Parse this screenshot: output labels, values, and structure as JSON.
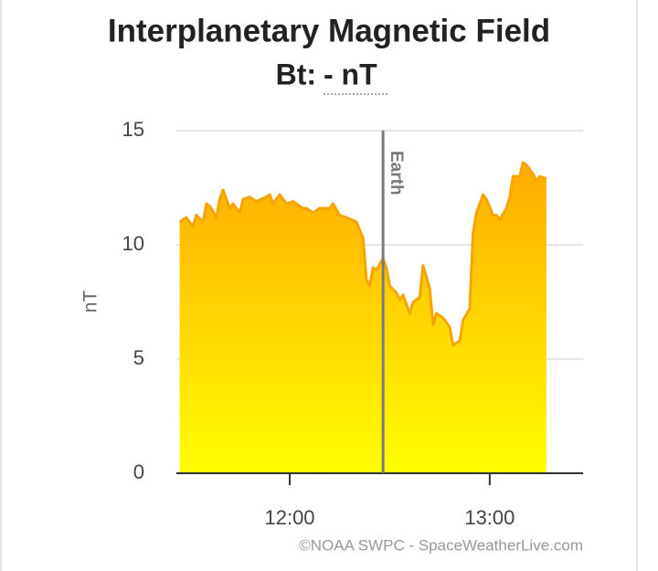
{
  "chart_data": {
    "type": "area",
    "title": "Interplanetary Magnetic Field",
    "subtitle_label": "Bt:",
    "subtitle_value": "- nT",
    "y_label": "nT",
    "credit": "©NOAA SWPC - SpaceWeatherLive.com",
    "color": "#f7a400",
    "fill_colors": [
      "#ffff00",
      "#ffab00"
    ],
    "grid": true,
    "xlim": [
      686,
      808
    ],
    "xticks": [
      {
        "value": 720,
        "label": "12:00"
      },
      {
        "value": 780,
        "label": "13:00"
      }
    ],
    "ylim": [
      0,
      15
    ],
    "yticks": [
      0,
      5,
      10,
      15
    ],
    "marker": {
      "x": 748,
      "label": "Earth",
      "color": "#7a7a7a"
    },
    "x": [
      687,
      689,
      691,
      692,
      694,
      695,
      696,
      698,
      699,
      700,
      702,
      703,
      705,
      706,
      708,
      710,
      713,
      714,
      715,
      717,
      719,
      721,
      724,
      725,
      727,
      729,
      732,
      733,
      735,
      737,
      740,
      742,
      743,
      744,
      745,
      746,
      748,
      749,
      750,
      752,
      753,
      754,
      756,
      757,
      759,
      760,
      762,
      763,
      764,
      766,
      768,
      769,
      771,
      772,
      774,
      775,
      776,
      778,
      779,
      781,
      782,
      783,
      785,
      786,
      787,
      789,
      790,
      791,
      793,
      794,
      795,
      797
    ],
    "values": [
      11.0,
      11.2,
      10.8,
      11.3,
      11.0,
      11.8,
      11.7,
      11.2,
      12.0,
      12.4,
      11.6,
      11.8,
      11.4,
      12.0,
      12.1,
      11.9,
      12.1,
      12.2,
      11.8,
      12.2,
      11.8,
      11.9,
      11.6,
      11.6,
      11.4,
      11.6,
      11.6,
      11.8,
      11.3,
      11.2,
      11.0,
      10.3,
      8.5,
      8.2,
      9.0,
      8.9,
      9.4,
      9.0,
      8.2,
      7.9,
      7.6,
      7.8,
      7.0,
      7.5,
      7.7,
      9.1,
      8.1,
      6.5,
      7.0,
      6.8,
      6.4,
      5.6,
      5.8,
      6.7,
      7.2,
      10.5,
      11.4,
      12.2,
      12.0,
      11.3,
      11.3,
      11.1,
      11.6,
      12.1,
      13.0,
      13.0,
      13.6,
      13.5,
      13.1,
      12.8,
      13.0,
      12.9
    ]
  }
}
